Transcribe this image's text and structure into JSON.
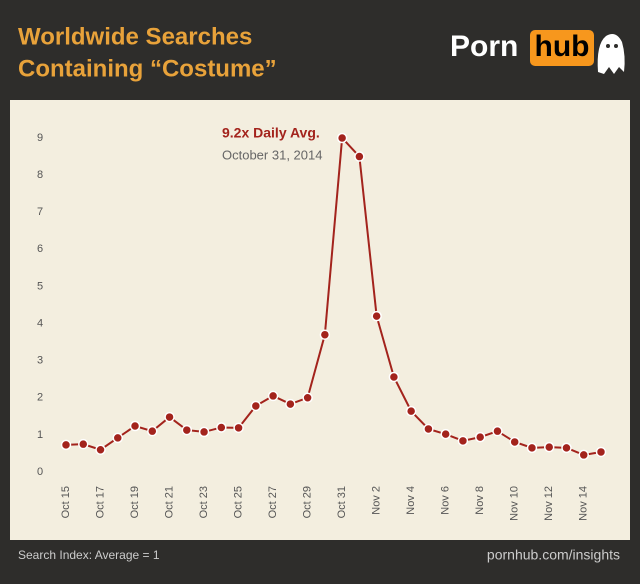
{
  "chart_data": {
    "type": "line",
    "title": [
      "Worldwide Searches",
      "Containing “Costume”"
    ],
    "brand": [
      "Porn",
      "hub"
    ],
    "annotation": {
      "text": "9.2x Daily Avg.",
      "subtext": "October 31, 2014"
    },
    "footnote": "Search Index: Average = 1",
    "source": "pornhub.com/insights",
    "categories": [
      "Oct 15",
      null,
      "Oct 17",
      null,
      "Oct 19",
      null,
      "Oct 21",
      null,
      "Oct 23",
      null,
      "Oct 25",
      null,
      "Oct 27",
      null,
      "Oct 29",
      null,
      "Oct 31",
      null,
      "Nov 2",
      null,
      "Nov 4",
      null,
      "Nov 6",
      null,
      "Nov 8",
      null,
      "Nov 10",
      null,
      "Nov 12",
      null,
      "Nov 14",
      null
    ],
    "series": [
      {
        "name": "Costume",
        "color": "#a3231c",
        "values": [
          0.73,
          0.75,
          0.6,
          0.92,
          1.24,
          1.1,
          1.48,
          1.13,
          1.08,
          1.2,
          1.19,
          1.78,
          2.05,
          1.83,
          2.0,
          3.7,
          9.0,
          8.5,
          4.2,
          2.56,
          1.64,
          1.16,
          1.02,
          0.84,
          0.94,
          1.1,
          0.81,
          0.65,
          0.67,
          0.65,
          0.46,
          0.54
        ]
      }
    ],
    "ylim": [
      0,
      9
    ],
    "yticks": [
      0,
      1,
      2,
      3,
      4,
      5,
      6,
      7,
      8,
      9
    ],
    "grid": false
  }
}
